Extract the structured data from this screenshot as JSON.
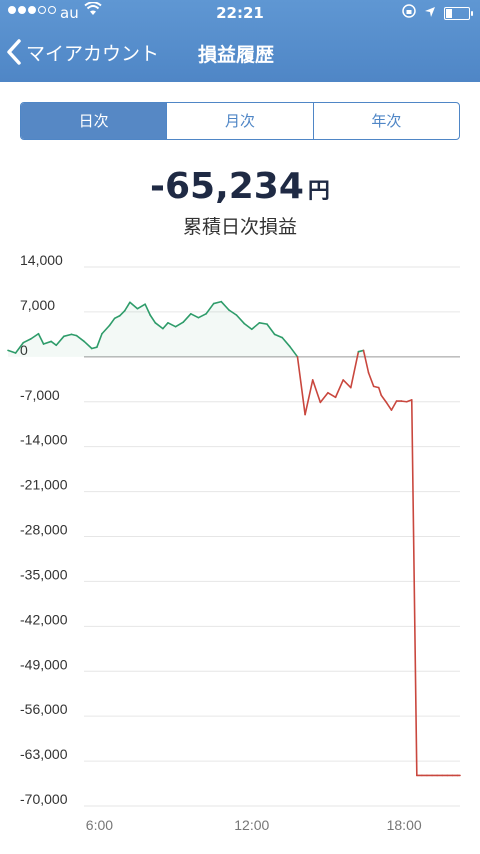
{
  "status": {
    "carrier": "au",
    "time": "22:21"
  },
  "nav": {
    "back_label": "マイアカウント",
    "title": "損益履歴"
  },
  "tabs": [
    {
      "label": "日次",
      "active": true
    },
    {
      "label": "月次",
      "active": false
    },
    {
      "label": "年次",
      "active": false
    }
  ],
  "summary": {
    "value": "-65,234",
    "unit": "円",
    "label": "累積日次損益"
  },
  "colors": {
    "accent": "#4f86c6",
    "positive": "#2e9c6a",
    "negative": "#c9473e"
  },
  "chart_data": {
    "type": "line",
    "ylim": [
      -70000,
      14000
    ],
    "y_ticks": [
      "14,000",
      "7,000",
      "0",
      "-7,000",
      "-14,000",
      "-21,000",
      "-28,000",
      "-35,000",
      "-42,000",
      "-49,000",
      "-56,000",
      "-63,000",
      "-70,000"
    ],
    "y_tick_values": [
      14000,
      7000,
      0,
      -7000,
      -14000,
      -21000,
      -28000,
      -35000,
      -42000,
      -49000,
      -56000,
      -63000,
      -70000
    ],
    "x_ticks": [
      "6:00",
      "12:00",
      "18:00"
    ],
    "x_tick_values": [
      6,
      12,
      18
    ],
    "xlim": [
      2.4,
      20.2
    ],
    "series": [
      {
        "x": [
          2.4,
          2.7,
          3.0,
          3.3,
          3.6,
          3.8,
          4.1,
          4.3,
          4.6,
          4.9,
          5.1,
          5.4,
          5.7,
          5.9,
          6.1,
          6.4,
          6.6,
          6.8,
          7.0,
          7.2,
          7.5,
          7.8,
          8.0,
          8.2,
          8.5,
          8.7,
          9.0,
          9.3,
          9.6,
          9.9,
          10.2,
          10.5,
          10.8,
          11.1,
          11.4,
          11.7,
          12.0,
          12.3,
          12.6,
          12.9,
          13.2,
          13.5,
          13.8,
          14.1,
          14.4,
          14.7,
          15.0,
          15.3,
          15.6,
          15.9,
          16.2,
          16.4,
          16.6,
          16.8,
          17.0,
          17.1,
          17.3,
          17.5,
          17.7,
          17.9,
          18.1,
          18.3,
          18.5,
          18.7,
          18.9,
          19.1,
          19.3,
          19.5,
          19.7,
          19.9,
          20.1,
          20.2
        ],
        "y": [
          1000,
          600,
          2200,
          2800,
          3600,
          2000,
          2400,
          1800,
          3200,
          3500,
          3300,
          2400,
          1300,
          1500,
          3600,
          4900,
          6000,
          6400,
          7200,
          8500,
          7500,
          8200,
          6500,
          5300,
          4400,
          5300,
          4700,
          5400,
          6700,
          6100,
          6700,
          8300,
          8600,
          7300,
          6500,
          5200,
          4300,
          5300,
          5100,
          3500,
          3000,
          1600,
          0,
          -9000,
          -3600,
          -7100,
          -5600,
          -6300,
          -3600,
          -4800,
          800,
          1000,
          -2500,
          -4600,
          -4800,
          -6000,
          -7100,
          -8300,
          -6900,
          -6900,
          -7000,
          -6700,
          -65234,
          -65234,
          -65234,
          -65234,
          -65234,
          -65234,
          -65234,
          -65234,
          -65234,
          -65234
        ]
      }
    ]
  }
}
